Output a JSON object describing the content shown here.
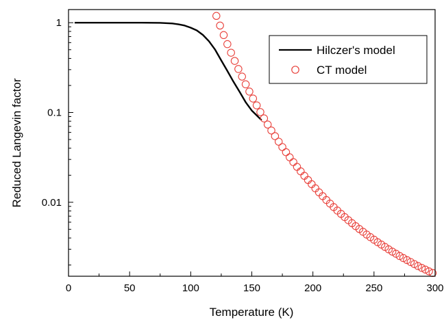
{
  "chart_data": {
    "type": "line",
    "title": "",
    "xlabel": "Temperature (K)",
    "ylabel": "Reduced Langevin factor",
    "xlim": [
      0,
      300
    ],
    "ylim": [
      0.0015,
      1.4
    ],
    "yscale": "log",
    "grid": false,
    "legend_position": "top-right",
    "x_ticks": [
      0,
      50,
      100,
      150,
      200,
      250,
      300
    ],
    "x_tick_labels": [
      "0",
      "50",
      "100",
      "150",
      "200",
      "250",
      "300"
    ],
    "y_ticks": [
      0.01,
      0.1,
      1
    ],
    "y_tick_labels": [
      "0.01",
      "0.1",
      "1"
    ],
    "series": [
      {
        "name": "Hilczer's model",
        "style": "line",
        "color": "#000000",
        "x": [
          5,
          20,
          40,
          60,
          75,
          85,
          90,
          95,
          100,
          105,
          110,
          115,
          120,
          125,
          130,
          135,
          140,
          145,
          150,
          155,
          158
        ],
        "y": [
          1,
          1,
          1,
          1,
          0.995,
          0.98,
          0.96,
          0.93,
          0.88,
          0.82,
          0.73,
          0.62,
          0.5,
          0.38,
          0.29,
          0.22,
          0.17,
          0.13,
          0.105,
          0.09,
          0.082
        ]
      },
      {
        "name": "CT model",
        "style": "scatter",
        "marker": "open-circle",
        "color": "#e8403a",
        "x": [
          121,
          124,
          127,
          130,
          133,
          136,
          139,
          142,
          145,
          148,
          151,
          154,
          157,
          160,
          163,
          166,
          169,
          172,
          175,
          178,
          181,
          184,
          187,
          190,
          193,
          196,
          199,
          202,
          205,
          208,
          211,
          214,
          217,
          220,
          223,
          226,
          229,
          232,
          235,
          238,
          241,
          244,
          247,
          250,
          253,
          256,
          259,
          262,
          265,
          268,
          271,
          274,
          277,
          280,
          283,
          286,
          289,
          292,
          295,
          298
        ],
        "y": [
          1.19,
          0.929,
          0.728,
          0.577,
          0.463,
          0.375,
          0.305,
          0.251,
          0.206,
          0.171,
          0.143,
          0.12,
          0.101,
          0.0859,
          0.0734,
          0.063,
          0.0545,
          0.0473,
          0.0412,
          0.0361,
          0.0317,
          0.028,
          0.0248,
          0.0221,
          0.0197,
          0.0177,
          0.0159,
          0.0143,
          0.0129,
          0.0117,
          0.0106,
          0.00967,
          0.00884,
          0.00809,
          0.00743,
          0.00684,
          0.00632,
          0.00585,
          0.00542,
          0.00504,
          0.00469,
          0.00437,
          0.00409,
          0.00383,
          0.00359,
          0.00338,
          0.00318,
          0.00299,
          0.00282,
          0.00267,
          0.00252,
          0.00239,
          0.00227,
          0.00216,
          0.00205,
          0.00195,
          0.00186,
          0.00178,
          0.0017,
          0.00163
        ]
      }
    ]
  }
}
